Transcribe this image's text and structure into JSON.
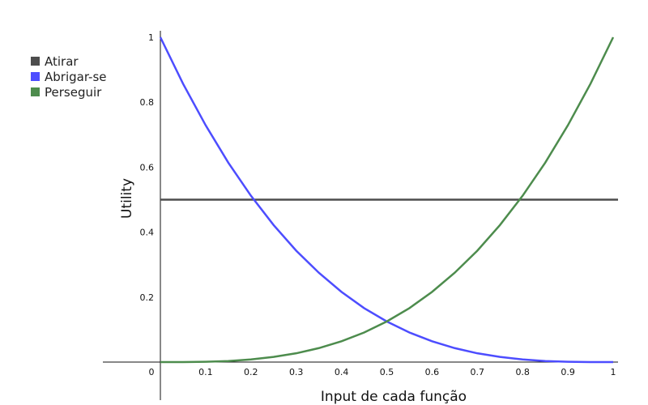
{
  "chart_data": {
    "type": "line",
    "title": "",
    "xlabel": "Input de cada função",
    "ylabel": "Utility",
    "xlim": [
      0,
      1
    ],
    "ylim": [
      0,
      1
    ],
    "x_ticks": [
      0.1,
      0.2,
      0.3,
      0.4,
      0.5,
      0.6,
      0.7,
      0.8,
      0.9,
      1
    ],
    "x_tick_labels": [
      "0.1",
      "0.2",
      "0.3",
      "0.4",
      "0.5",
      "0.6",
      "0.7",
      "0.8",
      "0.9",
      "1"
    ],
    "y_ticks": [
      0.2,
      0.4,
      0.6,
      0.8,
      1
    ],
    "y_tick_labels": [
      "0.2",
      "0.4",
      "0.6",
      "0.8",
      "1"
    ],
    "origin_label": "0",
    "grid": false,
    "legend_position": "top-left",
    "x": [
      0,
      0.05,
      0.1,
      0.15,
      0.2,
      0.25,
      0.3,
      0.35,
      0.4,
      0.45,
      0.5,
      0.55,
      0.6,
      0.65,
      0.7,
      0.75,
      0.8,
      0.85,
      0.9,
      0.95,
      1
    ],
    "series": [
      {
        "name": "Atirar",
        "color": "#4d4d4d",
        "values": [
          0.5,
          0.5,
          0.5,
          0.5,
          0.5,
          0.5,
          0.5,
          0.5,
          0.5,
          0.5,
          0.5,
          0.5,
          0.5,
          0.5,
          0.5,
          0.5,
          0.5,
          0.5,
          0.5,
          0.5,
          0.5
        ]
      },
      {
        "name": "Abrigar-se",
        "color": "#4d4dff",
        "values": [
          1,
          0.857,
          0.729,
          0.614,
          0.512,
          0.422,
          0.343,
          0.275,
          0.216,
          0.166,
          0.125,
          0.091,
          0.064,
          0.043,
          0.027,
          0.016,
          0.008,
          0.003,
          0.001,
          0.0001,
          0
        ]
      },
      {
        "name": "Perseguir",
        "color": "#4d8c4d",
        "values": [
          0,
          0.0001,
          0.001,
          0.003,
          0.008,
          0.016,
          0.027,
          0.043,
          0.064,
          0.091,
          0.125,
          0.166,
          0.216,
          0.275,
          0.343,
          0.422,
          0.512,
          0.614,
          0.729,
          0.857,
          1
        ]
      }
    ]
  }
}
